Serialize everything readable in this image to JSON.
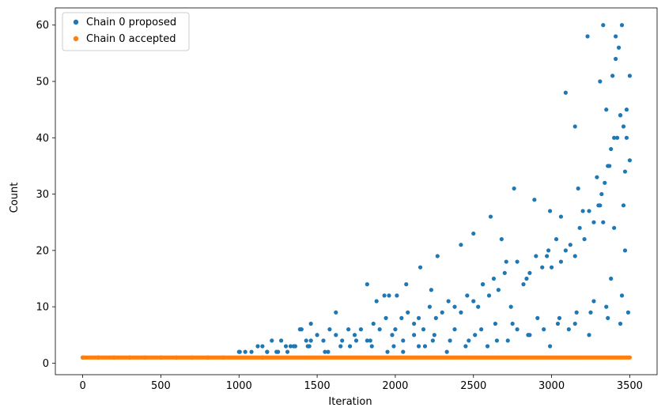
{
  "chart_data": {
    "type": "scatter",
    "title": "",
    "xlabel": "Iteration",
    "ylabel": "Count",
    "xlim": [
      -175,
      3675
    ],
    "ylim": [
      -2.05,
      63.05
    ],
    "xticks": [
      0,
      500,
      1000,
      1500,
      2000,
      2500,
      3000,
      3500
    ],
    "xtick_labels": [
      "0",
      "500",
      "1000",
      "1500",
      "2000",
      "2500",
      "3000",
      "3500"
    ],
    "yticks": [
      0,
      10,
      20,
      30,
      40,
      50,
      60
    ],
    "ytick_labels": [
      "0",
      "10",
      "20",
      "30",
      "40",
      "50",
      "60"
    ],
    "grid": false,
    "legend_position": "top-left",
    "series": [
      {
        "name": "Chain 0 proposed",
        "color": "#1f77b4",
        "note_x_sampled": "proposed counts equal 1 for every iteration 0–1000; sampled points below",
        "x": [
          0,
          100,
          200,
          300,
          400,
          500,
          600,
          700,
          800,
          900,
          1000,
          1005,
          1040,
          1080,
          1120,
          1150,
          1180,
          1210,
          1240,
          1270,
          1300,
          1330,
          1360,
          1400,
          1430,
          1460,
          1500,
          1540,
          1580,
          1620,
          1660,
          1700,
          1740,
          1780,
          1820,
          1860,
          1900,
          1940,
          1980,
          2000,
          2040,
          2080,
          2120,
          2150,
          2180,
          2220,
          2260,
          2300,
          2340,
          2380,
          2420,
          2460,
          2500,
          2530,
          2560,
          2600,
          2630,
          2660,
          2700,
          2740,
          2780,
          2820,
          2860,
          2900,
          2940,
          2980,
          3000,
          3030,
          3060,
          3090,
          3120,
          3150,
          3180,
          3210,
          3240,
          3270,
          3300,
          3320,
          3340,
          3360,
          3380,
          3400,
          3420,
          3440,
          3460,
          3480,
          3500,
          1390,
          1460,
          1620,
          1820,
          1880,
          1960,
          2010,
          2070,
          2160,
          2270,
          2420,
          2500,
          2610,
          2680,
          2760,
          2890,
          2990,
          3090,
          3150,
          3170,
          3230,
          3290,
          3310,
          3330,
          3350,
          3370,
          3390,
          3410,
          3430,
          3450,
          3480,
          3500,
          1150,
          1250,
          1350,
          1450,
          1550,
          1650,
          1750,
          1850,
          1950,
          2050,
          2150,
          2250,
          2350,
          2450,
          2550,
          2650,
          2750,
          2850,
          2950,
          3050,
          3150,
          3250,
          3350,
          3450,
          1180,
          1310,
          1440,
          1570,
          1710,
          1840,
          1990,
          2120,
          2240,
          2380,
          2510,
          2640,
          2780,
          2910,
          3040,
          3160,
          3270,
          3380,
          3470,
          2050,
          2190,
          2330,
          2470,
          2590,
          2720,
          2860,
          2990,
          3110,
          3240,
          3360,
          3440,
          3490,
          1930,
          2230,
          2560,
          2710,
          2840,
          2970,
          3060,
          3200,
          3310,
          3400,
          3460,
          3330,
          3410,
          3440,
          3470
        ],
        "y": [
          1,
          1,
          1,
          1,
          1,
          1,
          1,
          1,
          1,
          1,
          2,
          2,
          2,
          2,
          3,
          3,
          2,
          4,
          2,
          4,
          3,
          3,
          3,
          6,
          4,
          4,
          5,
          4,
          6,
          5,
          4,
          6,
          5,
          6,
          4,
          7,
          6,
          8,
          5,
          6,
          8,
          9,
          7,
          8,
          6,
          10,
          8,
          9,
          11,
          10,
          9,
          12,
          11,
          10,
          14,
          12,
          15,
          13,
          16,
          10,
          18,
          14,
          16,
          19,
          17,
          20,
          17,
          22,
          18,
          20,
          21,
          19,
          24,
          22,
          27,
          25,
          28,
          30,
          32,
          35,
          38,
          40,
          40,
          44,
          42,
          45,
          36,
          6,
          7,
          9,
          14,
          11,
          12,
          12,
          14,
          17,
          19,
          21,
          23,
          26,
          22,
          31,
          29,
          27,
          48,
          42,
          31,
          58,
          33,
          50,
          60,
          45,
          35,
          51,
          58,
          56,
          60,
          40,
          51,
          1,
          2,
          3,
          3,
          2,
          3,
          4,
          3,
          2,
          4,
          3,
          5,
          4,
          3,
          6,
          4,
          7,
          5,
          6,
          8,
          7,
          9,
          10,
          12,
          2,
          2,
          3,
          2,
          3,
          4,
          3,
          5,
          4,
          6,
          5,
          7,
          6,
          8,
          7,
          9,
          11,
          15,
          20,
          2,
          3,
          2,
          4,
          3,
          4,
          5,
          3,
          6,
          5,
          8,
          7,
          9,
          12,
          13,
          14,
          18,
          15,
          19,
          26,
          27,
          28,
          24,
          28,
          25,
          54,
          44,
          34
        ]
      },
      {
        "name": "Chain 0 accepted",
        "color": "#ff7f0e",
        "x_start": 0,
        "x_end": 3500,
        "constant_value": 1
      }
    ]
  }
}
